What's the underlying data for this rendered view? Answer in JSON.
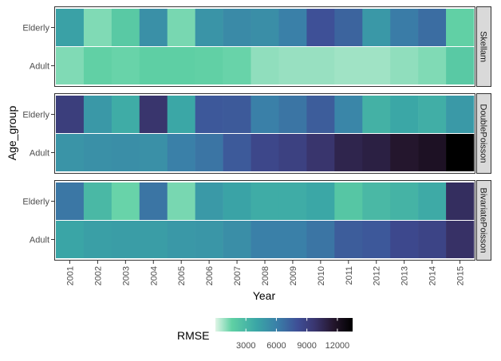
{
  "chart_data": {
    "type": "heatmap",
    "title": "",
    "xlabel": "Year",
    "ylabel": "Age_group",
    "x": [
      "2001",
      "2002",
      "2003",
      "2004",
      "2005",
      "2006",
      "2007",
      "2008",
      "2009",
      "2010",
      "2011",
      "2012",
      "2013",
      "2014",
      "2015"
    ],
    "y": [
      "Elderly",
      "Adult"
    ],
    "facets": [
      {
        "name": "Skellam",
        "rows": [
          {
            "group": "Elderly",
            "values": [
              4300,
              1200,
              2000,
              5200,
              1300,
              5000,
              5500,
              5300,
              6000,
              8000,
              7200,
              4800,
              6200,
              6800,
              1600
            ]
          },
          {
            "group": "Adult",
            "values": [
              1200,
              1600,
              1500,
              1700,
              1700,
              1600,
              1500,
              1000,
              900,
              900,
              800,
              800,
              1000,
              1200,
              2000
            ]
          }
        ]
      },
      {
        "name": "DoublePoisson",
        "rows": [
          {
            "group": "Elderly",
            "values": [
              9200,
              4800,
              3700,
              9800,
              4000,
              7700,
              7600,
              6000,
              6500,
              7500,
              5700,
              3400,
              4000,
              3600,
              4700
            ]
          },
          {
            "group": "Adult",
            "values": [
              5000,
              5200,
              5300,
              5200,
              6000,
              6500,
              7600,
              8600,
              9000,
              9800,
              10700,
              11000,
              11600,
              12000,
              13500
            ]
          }
        ]
      },
      {
        "name": "BivariatePoisson",
        "rows": [
          {
            "group": "Elderly",
            "values": [
              6400,
              3000,
              1500,
              6500,
              1300,
              4700,
              4200,
              3700,
              3700,
              4000,
              2200,
              3000,
              3300,
              3800,
              10200
            ]
          },
          {
            "group": "Adult",
            "values": [
              4100,
              4400,
              4500,
              4500,
              4800,
              4900,
              5300,
              6000,
              6000,
              6500,
              7500,
              7700,
              8500,
              8800,
              10000
            ]
          }
        ]
      }
    ],
    "colorbar": {
      "title": "RMSE",
      "range": [
        0,
        13500
      ],
      "ticks": [
        3000,
        6000,
        9000,
        12000
      ],
      "tick_labels": [
        "3000",
        "6000",
        "9000",
        "12000"
      ],
      "colors": [
        "#dff5e6",
        "#5fd0a4",
        "#3aa6a6",
        "#3a7fa8",
        "#3e4e96",
        "#3a3670",
        "#24162d",
        "#000000"
      ],
      "stops": [
        0,
        0.12,
        0.3,
        0.45,
        0.6,
        0.72,
        0.86,
        1
      ],
      "legend_position": "bottom"
    }
  }
}
